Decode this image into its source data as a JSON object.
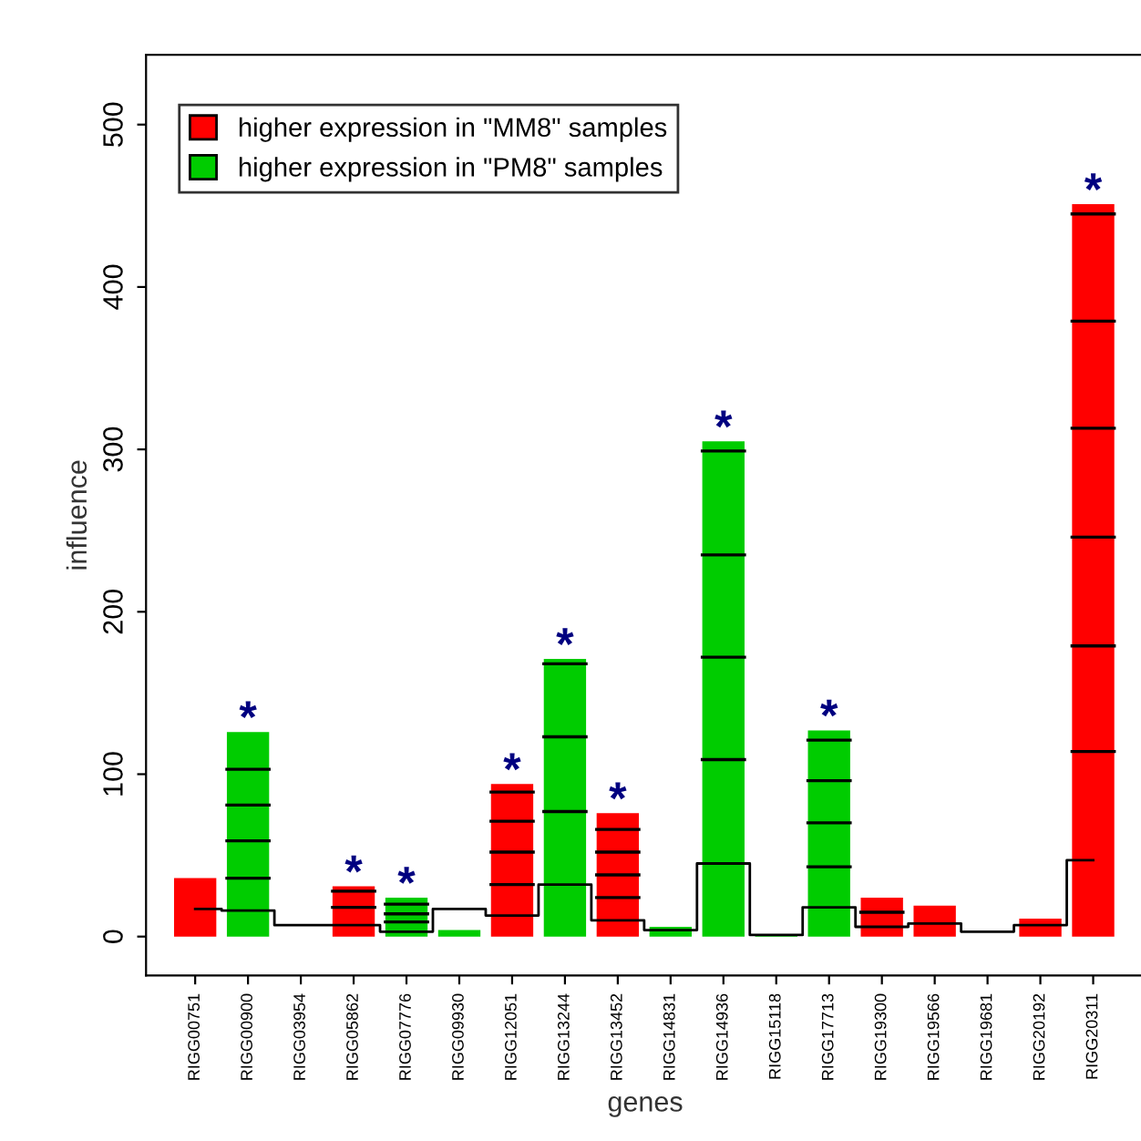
{
  "chart_data": {
    "type": "bar",
    "stacked": true,
    "xlabel": "genes",
    "ylabel": "influence",
    "categories": [
      "RIGG00751",
      "RIGG00900",
      "RIGG03954",
      "RIGG05862",
      "RIGG07776",
      "RIGG09930",
      "RIGG12051",
      "RIGG13244",
      "RIGG13452",
      "RIGG14831",
      "RIGG14936",
      "RIGG15118",
      "RIGG17713",
      "RIGG19300",
      "RIGG19566",
      "RIGG19681",
      "RIGG20192",
      "RIGG20311"
    ],
    "ylim": [
      -24,
      543
    ],
    "yticks": [
      0,
      100,
      200,
      300,
      400,
      500
    ],
    "grid": false,
    "legend": "top left",
    "series": [
      {
        "name": "higher expression in \"MM8\" samples",
        "color": "#ff0000",
        "values": [
          36,
          null,
          null,
          18,
          null,
          null,
          32,
          null,
          24,
          null,
          null,
          null,
          null,
          15,
          19,
          null,
          11,
          114
        ]
      },
      {
        "name": "higher expression in \"PM8\" samples",
        "color": "#00cc00",
        "values": [
          null,
          36,
          null,
          null,
          9,
          4,
          null,
          77,
          null,
          6,
          109,
          1,
          43,
          null,
          null,
          null,
          null,
          null
        ]
      },
      {
        "color": "#ff0000",
        "values": [
          null,
          null,
          null,
          10,
          null,
          null,
          20,
          null,
          14,
          null,
          null,
          null,
          null,
          9,
          null,
          null,
          null,
          65
        ]
      },
      {
        "color": "#00cc00",
        "values": [
          null,
          23,
          null,
          null,
          5,
          null,
          null,
          46,
          null,
          null,
          63,
          null,
          27,
          null,
          null,
          null,
          null,
          null
        ]
      },
      {
        "color": "#ff0000",
        "values": [
          null,
          null,
          null,
          3,
          null,
          null,
          19,
          null,
          14,
          null,
          null,
          null,
          null,
          null,
          null,
          null,
          null,
          67
        ]
      },
      {
        "color": "#00cc00",
        "values": [
          null,
          22,
          null,
          null,
          6,
          null,
          null,
          45,
          null,
          null,
          63,
          null,
          26,
          null,
          null,
          null,
          null,
          null
        ]
      },
      {
        "color": "#ff0000",
        "values": [
          null,
          null,
          null,
          null,
          null,
          null,
          18,
          null,
          14,
          null,
          null,
          null,
          null,
          null,
          null,
          null,
          null,
          67
        ]
      },
      {
        "color": "#00cc00",
        "values": [
          null,
          22,
          null,
          null,
          4,
          null,
          null,
          3,
          null,
          null,
          64,
          null,
          25,
          null,
          null,
          null,
          null,
          null
        ]
      },
      {
        "color": "#ff0000",
        "values": [
          null,
          null,
          null,
          null,
          null,
          null,
          5,
          null,
          10,
          null,
          null,
          null,
          null,
          null,
          null,
          null,
          null,
          66
        ]
      },
      {
        "color": "#00cc00",
        "values": [
          null,
          23,
          null,
          null,
          null,
          null,
          null,
          null,
          null,
          null,
          6,
          null,
          6,
          null,
          null,
          null,
          null,
          null
        ]
      },
      {
        "color": "#ff0000",
        "values": [
          null,
          null,
          null,
          null,
          null,
          null,
          null,
          null,
          null,
          null,
          null,
          null,
          null,
          null,
          null,
          null,
          null,
          66
        ]
      },
      {
        "color": "#ff0000",
        "values": [
          null,
          null,
          null,
          null,
          null,
          null,
          null,
          null,
          null,
          null,
          null,
          null,
          null,
          null,
          null,
          null,
          null,
          6
        ]
      },
      {
        "type": "step",
        "color": "#000000",
        "values": [
          17,
          16,
          7,
          7,
          3,
          17,
          13,
          32,
          10,
          4,
          45,
          1,
          18,
          6,
          8,
          3,
          7,
          47
        ]
      }
    ],
    "annotations": [
      {
        "text": "*",
        "x": "RIGG00900",
        "y": 126
      },
      {
        "text": "*",
        "x": "RIGG05862",
        "y": 31
      },
      {
        "text": "*",
        "x": "RIGG07776",
        "y": 24
      },
      {
        "text": "*",
        "x": "RIGG12051",
        "y": 94
      },
      {
        "text": "*",
        "x": "RIGG13244",
        "y": 171
      },
      {
        "text": "*",
        "x": "RIGG13452",
        "y": 76
      },
      {
        "text": "*",
        "x": "RIGG14936",
        "y": 305
      },
      {
        "text": "*",
        "x": "RIGG17713",
        "y": 127
      },
      {
        "text": "*",
        "x": "RIGG20311",
        "y": 451
      }
    ]
  }
}
